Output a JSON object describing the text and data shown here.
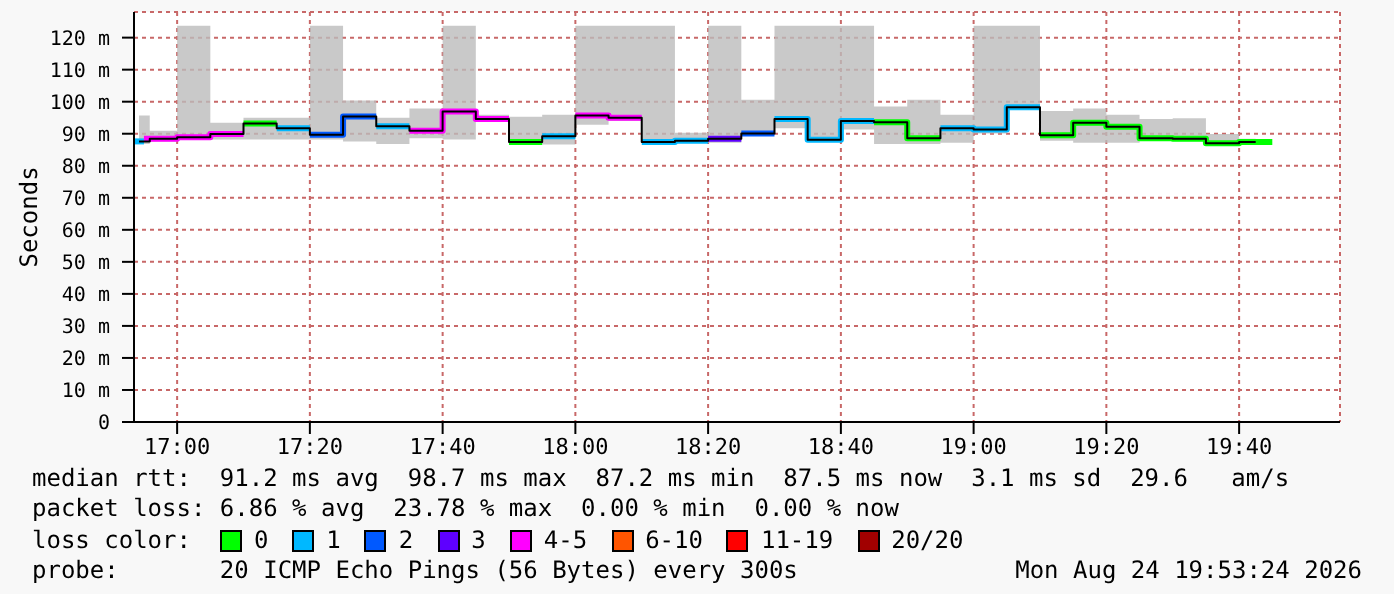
{
  "chart_data": {
    "type": "step",
    "ylabel": "Seconds",
    "legend_title": "loss color:",
    "legend": "bottom",
    "grid": true,
    "x": [
      16.9042,
      16.9583,
      17.0417,
      17.125,
      17.2083,
      17.2917,
      17.375,
      17.4583,
      17.5417,
      17.625,
      17.7083,
      17.7917,
      17.875,
      17.9583,
      18.0417,
      18.125,
      18.2083,
      18.2917,
      18.375,
      18.4583,
      18.5417,
      18.625,
      18.7083,
      18.7917,
      18.875,
      18.9583,
      19.0417,
      19.125,
      19.2083,
      19.2917,
      19.375,
      19.4583,
      19.5417,
      19.625,
      19.7083
    ],
    "xlim": [
      16.8917,
      19.92
    ],
    "xticks": [
      {
        "value": 17,
        "label": "17:00"
      },
      {
        "value": 17.3333,
        "label": "17:20"
      },
      {
        "value": 17.6667,
        "label": "17:40"
      },
      {
        "value": 18,
        "label": "18:00"
      },
      {
        "value": 18.3333,
        "label": "18:20"
      },
      {
        "value": 18.6667,
        "label": "18:40"
      },
      {
        "value": 19,
        "label": "19:00"
      },
      {
        "value": 19.3333,
        "label": "19:20"
      },
      {
        "value": 19.6667,
        "label": "19:40"
      }
    ],
    "ylim": [
      0,
      128
    ],
    "yticks": [
      0,
      {
        "value": 10,
        "label": "10 m"
      },
      {
        "value": 20,
        "label": "20 m"
      },
      {
        "value": 30,
        "label": "30 m"
      },
      {
        "value": 40,
        "label": "40 m"
      },
      {
        "value": 50,
        "label": "50 m"
      },
      {
        "value": 60,
        "label": "60 m"
      },
      {
        "value": 70,
        "label": "70 m"
      },
      {
        "value": 80,
        "label": "80 m"
      },
      {
        "value": 90,
        "label": "90 m"
      },
      {
        "value": 100,
        "label": "100 m"
      },
      {
        "value": 110,
        "label": "110 m"
      },
      {
        "value": 120,
        "label": "120 m"
      }
    ],
    "series": [
      {
        "color": "#000000",
        "values": [
          87.6,
          88.4,
          88.9,
          89.9,
          93.2,
          91.7,
          89.7,
          95.4,
          92.3,
          90.9,
          96.9,
          94.6,
          87.4,
          89.2,
          95.7,
          95.0,
          87.4,
          87.8,
          88.4,
          90.1,
          94.6,
          88.1,
          94.0,
          93.6,
          88.6,
          91.7,
          91.3,
          98.3,
          89.5,
          93.4,
          92.2,
          88.6,
          88.4,
          87.0,
          87.4
        ],
        "lower": [
          86.8,
          87.6,
          88.2,
          88.2,
          88.2,
          88.2,
          88.2,
          87.6,
          86.8,
          88.6,
          88.2,
          94.0,
          87.2,
          86.6,
          92.8,
          94.0,
          87.2,
          87.2,
          87.2,
          89.7,
          91.7,
          88.1,
          91.3,
          86.8,
          86.8,
          87.2,
          90.1,
          97.5,
          87.8,
          87.2,
          87.2,
          88.2,
          88.2,
          86.4,
          86.8
        ],
        "upper": [
          95.7,
          90.9,
          123.7,
          93.4,
          95.0,
          95.0,
          123.7,
          100.4,
          95.0,
          97.9,
          123.7,
          95.9,
          95.3,
          95.9,
          123.7,
          123.7,
          123.7,
          90.3,
          123.7,
          100.6,
          123.7,
          123.7,
          123.7,
          98.5,
          100.6,
          95.9,
          123.7,
          123.7,
          97.1,
          97.9,
          95.9,
          94.6,
          94.8,
          89.9,
          88.4
        ]
      },
      {
        "name": "0",
        "color": "#00ff00",
        "x": [
          17.1667,
          17.25
        ],
        "values": [
          93.2,
          93.2
        ]
      },
      {
        "color": "#00ff00",
        "x": [
          17.8333,
          17.9167
        ],
        "values": [
          87.4,
          87.4
        ]
      },
      {
        "color": "#00ff00",
        "x": [
          18.75,
          18.8333,
          18.9167
        ],
        "values": [
          93.6,
          88.6,
          88.6
        ]
      },
      {
        "color": "#00ff00",
        "x": [
          19.1667,
          19.25,
          19.3333,
          19.4167,
          19.5,
          19.5833,
          19.6667,
          19.75
        ],
        "values": [
          89.5,
          93.4,
          92.2,
          88.6,
          88.4,
          87.0,
          87.4,
          87.4
        ]
      },
      {
        "name": "1",
        "color": "#00b8ff",
        "x": [
          16.8917,
          16.9167
        ],
        "values": [
          87.6,
          87.6
        ]
      },
      {
        "color": "#00b8ff",
        "x": [
          17.25,
          17.3333
        ],
        "values": [
          91.7,
          91.7
        ]
      },
      {
        "color": "#00b8ff",
        "x": [
          17.5,
          17.5833
        ],
        "values": [
          92.3,
          92.3
        ]
      },
      {
        "color": "#00b8ff",
        "x": [
          17.9167,
          18.0
        ],
        "values": [
          89.2,
          89.2
        ]
      },
      {
        "color": "#00b8ff",
        "x": [
          18.1667,
          18.25,
          18.3333
        ],
        "values": [
          87.4,
          87.8,
          87.8
        ]
      },
      {
        "color": "#00b8ff",
        "x": [
          18.5,
          18.5833,
          18.6667,
          18.75
        ],
        "values": [
          94.6,
          88.1,
          94.0,
          94.0
        ]
      },
      {
        "color": "#00b8ff",
        "x": [
          18.9167,
          19.0,
          19.0833,
          19.1667
        ],
        "values": [
          91.7,
          91.3,
          98.3,
          98.3
        ]
      },
      {
        "name": "2",
        "color": "#0059ff",
        "x": [
          17.3333,
          17.4167,
          17.5
        ],
        "values": [
          89.7,
          95.4,
          95.4
        ]
      },
      {
        "color": "#0059ff",
        "x": [
          18.4167,
          18.5
        ],
        "values": [
          90.1,
          90.1
        ]
      },
      {
        "name": "3",
        "color": "#5e00ff",
        "x": [
          18.3333,
          18.4167
        ],
        "values": [
          88.4,
          88.4
        ]
      },
      {
        "name": "4-5",
        "color": "#ff00ff",
        "x": [
          16.9167,
          17.0,
          17.0833,
          17.1667
        ],
        "values": [
          88.4,
          88.9,
          89.9,
          89.9
        ]
      },
      {
        "color": "#ff00ff",
        "x": [
          17.5833,
          17.6667,
          17.75,
          17.8333
        ],
        "values": [
          90.9,
          96.9,
          94.6,
          94.6
        ]
      },
      {
        "color": "#ff00ff",
        "x": [
          18.0,
          18.0833,
          18.1667
        ],
        "values": [
          95.7,
          95.0,
          95.0
        ]
      },
      {
        "name": "6-10",
        "color": "#ff5500",
        "values": [
          null,
          null,
          null,
          null,
          null,
          null,
          null,
          null,
          null,
          null,
          null,
          null,
          null,
          null,
          null,
          null,
          null,
          null,
          null,
          null,
          null,
          null,
          null,
          null,
          null,
          null,
          null,
          null,
          null,
          null,
          null,
          null,
          null,
          null,
          null
        ]
      },
      {
        "name": "11-19",
        "color": "#ff0000",
        "values": [
          null,
          null,
          null,
          null,
          null,
          null,
          null,
          null,
          null,
          null,
          null,
          null,
          null,
          null,
          null,
          null,
          null,
          null,
          null,
          null,
          null,
          null,
          null,
          null,
          null,
          null,
          null,
          null,
          null,
          null,
          null,
          null,
          null,
          null,
          null
        ]
      },
      {
        "name": "20/20",
        "color": "#a10000",
        "values": [
          null,
          null,
          null,
          null,
          null,
          null,
          null,
          null,
          null,
          null,
          null,
          null,
          null,
          null,
          null,
          null,
          null,
          null,
          null,
          null,
          null,
          null,
          null,
          null,
          null,
          null,
          null,
          null,
          null,
          null,
          null,
          null,
          null,
          null,
          null
        ]
      }
    ],
    "annotations": [
      "median rtt:  91.2 ms avg  98.7 ms max  87.2 ms min  87.5 ms now  3.1 ms sd  29.6   am/s",
      "packet loss: 6.86 % avg  23.78 % max  0.00 % min  0.00 % now",
      "probe:       20 ICMP Echo Pings (56 Bytes) every 300s",
      "Mon Aug 24 19:53:24 2026"
    ]
  }
}
